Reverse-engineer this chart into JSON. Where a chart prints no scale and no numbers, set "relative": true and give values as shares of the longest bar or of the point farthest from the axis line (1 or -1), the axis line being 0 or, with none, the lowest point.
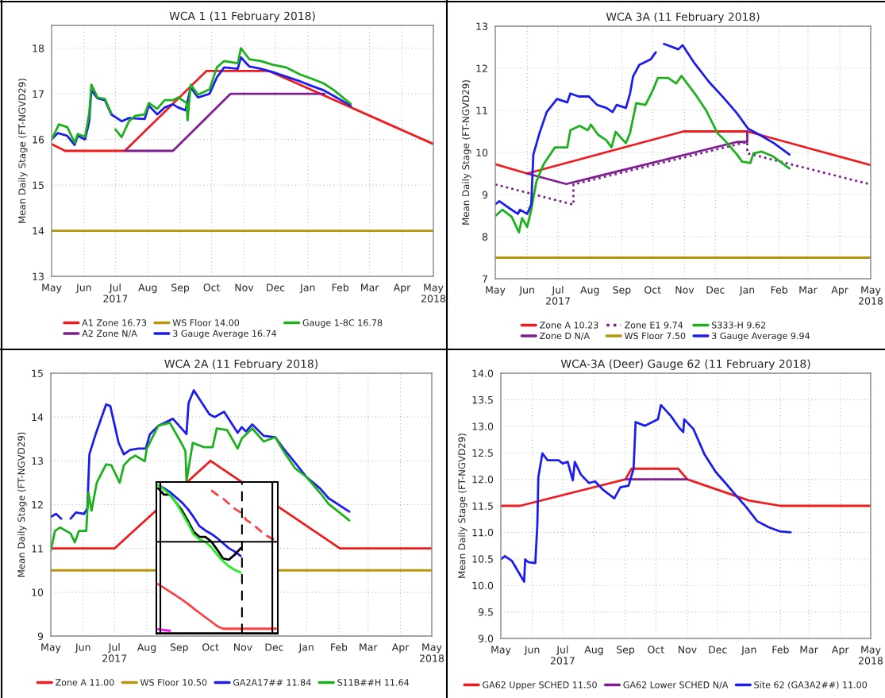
{
  "chart_data": [
    {
      "type": "line",
      "title": "WCA 1 (11 February 2018)",
      "ylabel": "Mean Daily Stage (FT-NGVD29)",
      "xlim": [
        "2017-05-01",
        "2018-05-01"
      ],
      "xticks": [
        {
          "value": "2017-05-01",
          "label": "May"
        },
        {
          "value": "2017-06-01",
          "label": "Jun"
        },
        {
          "value": "2017-07-01",
          "label": "Jul\n2017"
        },
        {
          "value": "2017-08-01",
          "label": "Aug"
        },
        {
          "value": "2017-09-01",
          "label": "Sep"
        },
        {
          "value": "2017-10-01",
          "label": "Oct"
        },
        {
          "value": "2017-11-01",
          "label": "Nov"
        },
        {
          "value": "2017-12-01",
          "label": "Dec"
        },
        {
          "value": "2018-01-01",
          "label": "Jan"
        },
        {
          "value": "2018-02-01",
          "label": "Feb"
        },
        {
          "value": "2018-03-01",
          "label": "Mar"
        },
        {
          "value": "2018-04-01",
          "label": "Apr"
        },
        {
          "value": "2018-05-01",
          "label": "May\n2018"
        }
      ],
      "ylim": [
        13,
        18.5
      ],
      "yticks": [
        13,
        14,
        15,
        16,
        17,
        18
      ],
      "grid": true,
      "legend": "bottom",
      "series": [
        {
          "name": "A1 Zone 16.73",
          "color": "#ee1c1c",
          "x": [
            "2017-05-01",
            "2017-05-14",
            "2017-07-10",
            "2017-09-26",
            "2017-11-25",
            "2018-05-01"
          ],
          "values": [
            15.9,
            15.75,
            15.75,
            17.5,
            17.5,
            15.9
          ]
        },
        {
          "name": "A2 Zone N/A",
          "color": "#7f1f8f",
          "x": [
            "2017-07-10",
            "2017-08-25",
            "2017-10-19",
            "2018-01-17"
          ],
          "values": [
            15.75,
            15.75,
            17.0,
            17.0
          ]
        },
        {
          "name": "WS Floor 14.00",
          "color": "#b8960c",
          "x": [
            "2017-05-01",
            "2018-05-01"
          ],
          "values": [
            14.0,
            14.0
          ]
        },
        {
          "name": "3 Gauge Average 16.74",
          "color": "#1c1cee",
          "x": [
            "2017-05-01",
            "2017-05-07",
            "2017-05-16",
            "2017-05-23",
            "2017-05-26",
            "2017-06-02",
            "2017-06-06",
            "2017-06-08",
            "2017-06-14",
            "2017-06-21",
            "2017-06-27",
            "2017-07-07",
            "2017-07-14",
            "2017-07-20",
            "2017-07-29",
            "2017-08-02",
            "2017-08-10",
            "2017-08-17",
            "2017-08-25",
            "2017-08-30",
            "2017-09-06",
            "2017-09-11",
            "2017-09-18",
            "2017-09-29",
            "2017-10-06",
            "2017-10-13",
            "2017-10-26",
            "2017-10-29",
            "2017-11-06",
            "2017-11-17",
            "2017-11-28",
            "2017-12-11",
            "2017-12-25",
            "2018-01-05",
            "2018-01-16",
            "2018-01-26",
            "2018-02-11"
          ],
          "values": [
            16.0,
            16.14,
            16.08,
            15.88,
            16.08,
            16.0,
            16.4,
            17.08,
            16.9,
            16.86,
            16.55,
            16.4,
            16.47,
            16.46,
            16.45,
            16.74,
            16.55,
            16.7,
            16.77,
            16.7,
            16.64,
            17.14,
            16.92,
            17.0,
            17.36,
            17.58,
            17.55,
            17.8,
            17.6,
            17.55,
            17.48,
            17.38,
            17.27,
            17.17,
            17.08,
            16.95,
            16.74
          ]
        },
        {
          "name": "Gauge 1-8C 16.78",
          "color": "#1cb01c",
          "x": [
            "2017-05-01",
            "2017-05-08",
            "2017-05-16",
            "2017-05-23",
            "2017-05-26",
            "2017-06-02",
            "2017-06-06",
            "2017-06-08",
            "2017-06-14",
            "2017-06-21",
            "2017-06-27",
            "2017-06-29",
            "2017-07-01",
            "2017-07-07",
            "2017-07-14",
            "2017-07-20",
            "2017-07-29",
            "2017-08-02",
            "2017-08-10",
            "2017-08-17",
            "2017-08-25",
            "2017-08-30",
            "2017-09-07",
            "2017-09-08",
            "2017-09-11",
            "2017-09-18",
            "2017-09-29",
            "2017-10-06",
            "2017-10-13",
            "2017-10-26",
            "2017-10-29",
            "2017-11-06",
            "2017-11-17",
            "2017-11-28",
            "2017-12-11",
            "2017-12-25",
            "2018-01-05",
            "2018-01-16",
            "2018-01-26",
            "2018-02-11"
          ],
          "values": [
            16.0,
            16.33,
            16.27,
            15.93,
            16.12,
            16.06,
            16.58,
            17.2,
            16.92,
            16.89,
            16.58,
            null,
            16.22,
            16.05,
            16.4,
            16.52,
            16.55,
            16.8,
            16.67,
            16.86,
            16.86,
            16.92,
            16.8,
            16.42,
            17.2,
            16.98,
            17.1,
            17.58,
            17.72,
            17.67,
            18.0,
            17.76,
            17.72,
            17.64,
            17.58,
            17.42,
            17.33,
            17.23,
            17.08,
            16.78
          ]
        }
      ]
    },
    {
      "type": "line",
      "title": "WCA 3A (11 February 2018)",
      "ylabel": "Mean Daily Stage (FT-NGVD29)",
      "xlim": [
        "2017-05-01",
        "2018-05-01"
      ],
      "xticks": [
        {
          "value": "2017-05-01",
          "label": "May"
        },
        {
          "value": "2017-06-01",
          "label": "Jun"
        },
        {
          "value": "2017-07-01",
          "label": "Jul\n2017"
        },
        {
          "value": "2017-08-01",
          "label": "Aug"
        },
        {
          "value": "2017-09-01",
          "label": "Sep"
        },
        {
          "value": "2017-10-01",
          "label": "Oct"
        },
        {
          "value": "2017-11-01",
          "label": "Nov"
        },
        {
          "value": "2017-12-01",
          "label": "Dec"
        },
        {
          "value": "2018-01-01",
          "label": "Jan"
        },
        {
          "value": "2018-02-01",
          "label": "Feb"
        },
        {
          "value": "2018-03-01",
          "label": "Mar"
        },
        {
          "value": "2018-04-01",
          "label": "Apr"
        },
        {
          "value": "2018-05-01",
          "label": "May\n2018"
        }
      ],
      "ylim": [
        7,
        13
      ],
      "yticks": [
        7,
        8,
        9,
        10,
        11,
        12,
        13
      ],
      "grid": true,
      "legend": "bottom",
      "series": [
        {
          "name": "Zone A 10.23",
          "color": "#ee1c1c",
          "x": [
            "2017-05-01",
            "2017-06-01",
            "2017-10-31",
            "2018-01-01",
            "2018-05-01"
          ],
          "values": [
            9.72,
            9.5,
            10.5,
            10.5,
            9.7
          ]
        },
        {
          "name": "Zone D N/A",
          "color": "#7f1f8f",
          "x": [
            "2017-06-01",
            "2017-07-09",
            "2017-12-22",
            "2018-01-01",
            "2018-01-01"
          ],
          "values": [
            9.5,
            9.25,
            10.25,
            10.25,
            10.5
          ]
        },
        {
          "name": "Zone E1 9.74",
          "color": "#7f1f8f",
          "line_style": "dotted",
          "x": [
            "2017-05-01",
            "2017-07-16",
            "2017-07-16",
            "2018-01-01",
            "2018-01-01",
            "2018-05-01"
          ],
          "values": [
            9.24,
            8.76,
            9.24,
            10.25,
            9.98,
            9.24
          ]
        },
        {
          "name": "WS Floor 7.50",
          "color": "#b8960c",
          "x": [
            "2017-05-01",
            "2018-05-01"
          ],
          "values": [
            7.5,
            7.5
          ]
        },
        {
          "name": "S333-H 9.62",
          "color": "#1cb01c",
          "x": [
            "2017-05-01",
            "2017-05-08",
            "2017-05-17",
            "2017-05-24",
            "2017-05-27",
            "2017-06-01",
            "2017-06-05",
            "2017-06-10",
            "2017-06-17",
            "2017-06-28",
            "2017-07-10",
            "2017-07-13",
            "2017-07-22",
            "2017-07-30",
            "2017-08-02",
            "2017-08-09",
            "2017-08-17",
            "2017-08-22",
            "2017-08-26",
            "2017-09-05",
            "2017-09-09",
            "2017-09-15",
            "2017-09-24",
            "2017-10-01",
            "2017-10-06",
            "2017-10-16",
            "2017-10-24",
            "2017-10-29",
            "2017-11-11",
            "2017-11-22",
            "2017-12-03",
            "2017-12-10",
            "2017-12-22",
            "2017-12-27",
            "2018-01-04",
            "2018-01-07",
            "2018-01-15",
            "2018-01-25",
            "2018-02-11"
          ],
          "values": [
            8.49,
            8.64,
            8.47,
            8.1,
            8.44,
            8.23,
            8.64,
            9.31,
            9.72,
            10.12,
            10.12,
            10.53,
            10.63,
            10.53,
            10.66,
            10.42,
            10.29,
            10.12,
            10.49,
            10.22,
            10.46,
            11.17,
            11.13,
            11.47,
            11.77,
            11.77,
            11.64,
            11.82,
            11.4,
            11.0,
            10.46,
            10.29,
            9.95,
            9.78,
            9.75,
            9.98,
            10.02,
            9.92,
            9.62
          ]
        },
        {
          "name": "3 Gauge Average 9.94",
          "color": "#1c1cee",
          "x": [
            "2017-05-01",
            "2017-05-05",
            "2017-05-15",
            "2017-05-23",
            "2017-05-25",
            "2017-06-01",
            "2017-06-05",
            "2017-06-07",
            "2017-06-13",
            "2017-06-20",
            "2017-06-30",
            "2017-07-10",
            "2017-07-13",
            "2017-07-21",
            "2017-07-31",
            "2017-08-08",
            "2017-08-17",
            "2017-08-23",
            "2017-08-27",
            "2017-09-05",
            "2017-09-09",
            "2017-09-12",
            "2017-09-18",
            "2017-09-29",
            "2017-10-04",
            "2017-10-08",
            "2017-10-12",
            "2017-10-26",
            "2017-10-30",
            "2017-11-11",
            "2017-11-25",
            "2017-12-09",
            "2017-12-22",
            "2018-01-02",
            "2018-01-13",
            "2018-01-27",
            "2018-02-11"
          ],
          "values": [
            8.77,
            8.84,
            8.67,
            8.54,
            8.64,
            8.54,
            8.77,
            9.95,
            10.46,
            10.96,
            11.27,
            11.19,
            11.4,
            11.33,
            11.33,
            11.13,
            11.06,
            10.96,
            11.13,
            11.06,
            11.4,
            11.81,
            12.08,
            12.21,
            12.38,
            null,
            12.58,
            12.45,
            12.55,
            12.11,
            11.67,
            11.3,
            10.93,
            10.56,
            10.42,
            10.22,
            9.95
          ]
        }
      ]
    },
    {
      "type": "line",
      "title": "WCA 2A (11 February 2018)",
      "ylabel": "Mean Daily Stage (FT-NGVD29)",
      "xlim": [
        "2017-05-01",
        "2018-05-01"
      ],
      "xticks": [
        {
          "value": "2017-05-01",
          "label": "May"
        },
        {
          "value": "2017-06-01",
          "label": "Jun"
        },
        {
          "value": "2017-07-01",
          "label": "Jul\n2017"
        },
        {
          "value": "2017-08-01",
          "label": "Aug"
        },
        {
          "value": "2017-09-01",
          "label": "Sep"
        },
        {
          "value": "2017-10-01",
          "label": "Oct"
        },
        {
          "value": "2017-11-01",
          "label": "Nov"
        },
        {
          "value": "2017-12-01",
          "label": "Dec"
        },
        {
          "value": "2018-01-01",
          "label": "Jan"
        },
        {
          "value": "2018-02-01",
          "label": "Feb"
        },
        {
          "value": "2018-03-01",
          "label": "Mar"
        },
        {
          "value": "2018-04-01",
          "label": "Apr"
        },
        {
          "value": "2018-05-01",
          "label": "May\n2018"
        }
      ],
      "ylim": [
        9,
        15
      ],
      "yticks": [
        9,
        10,
        11,
        12,
        13,
        14,
        15
      ],
      "grid": true,
      "legend": "bottom",
      "series": [
        {
          "name": "Zone A 11.00",
          "color": "#ee1c1c",
          "x": [
            "2017-05-01",
            "2017-07-01",
            "2017-10-01",
            "2018-02-02",
            "2018-05-01"
          ],
          "values": [
            11.0,
            11.0,
            13.0,
            11.0,
            11.0
          ]
        },
        {
          "name": "WS Floor 10.50",
          "color": "#b8960c",
          "x": [
            "2017-05-01",
            "2018-05-01"
          ],
          "values": [
            10.5,
            10.5
          ]
        },
        {
          "name": "GA2A17## 11.84",
          "color": "#1c1cee",
          "x": [
            "2017-05-01",
            "2017-05-06",
            "2017-05-11",
            "2017-05-15",
            "2017-05-20",
            "2017-05-25",
            "2017-06-02",
            "2017-06-05",
            "2017-06-07",
            "2017-06-13",
            "2017-06-23",
            "2017-06-27",
            "2017-07-05",
            "2017-07-10",
            "2017-07-16",
            "2017-07-24",
            "2017-07-31",
            "2017-08-04",
            "2017-08-12",
            "2017-08-26",
            "2017-09-08",
            "2017-09-10",
            "2017-09-15",
            "2017-09-30",
            "2017-10-05",
            "2017-10-14",
            "2017-10-27",
            "2017-10-31",
            "2017-11-04",
            "2017-11-10",
            "2017-11-21",
            "2017-12-02",
            "2017-12-10",
            "2017-12-21",
            "2018-01-01",
            "2018-01-14",
            "2018-01-22",
            "2018-02-11"
          ],
          "values": [
            11.72,
            11.79,
            11.68,
            null,
            11.68,
            11.82,
            11.79,
            11.92,
            13.15,
            13.61,
            14.29,
            14.25,
            13.41,
            13.15,
            13.25,
            13.28,
            13.28,
            13.61,
            13.8,
            13.96,
            13.61,
            14.32,
            14.61,
            14.06,
            14.0,
            14.12,
            13.64,
            13.77,
            13.67,
            13.83,
            13.57,
            13.54,
            13.28,
            12.96,
            12.63,
            12.37,
            12.15,
            11.84
          ]
        },
        {
          "name": "S11B##H 11.64",
          "color": "#1cb01c",
          "x": [
            "2017-05-01",
            "2017-05-05",
            "2017-05-10",
            "2017-05-20",
            "2017-05-24",
            "2017-05-28",
            "2017-06-04",
            "2017-06-06",
            "2017-06-09",
            "2017-06-14",
            "2017-06-23",
            "2017-06-28",
            "2017-07-06",
            "2017-07-10",
            "2017-07-16",
            "2017-07-21",
            "2017-07-30",
            "2017-08-01",
            "2017-08-12",
            "2017-08-23",
            "2017-09-03",
            "2017-09-07",
            "2017-09-08",
            "2017-09-14",
            "2017-09-25",
            "2017-10-03",
            "2017-10-07",
            "2017-10-17",
            "2017-10-27",
            "2017-10-31",
            "2017-11-10",
            "2017-11-21",
            "2017-12-02",
            "2017-12-10",
            "2017-12-21",
            "2018-01-01",
            "2018-01-15",
            "2018-01-22",
            "2018-02-11"
          ],
          "values": [
            10.95,
            11.4,
            11.48,
            11.34,
            11.14,
            11.4,
            11.4,
            12.28,
            11.86,
            12.5,
            12.92,
            12.9,
            12.5,
            12.9,
            13.05,
            13.12,
            12.99,
            13.28,
            13.8,
            13.87,
            13.41,
            13.22,
            12.54,
            13.41,
            13.31,
            13.31,
            13.74,
            13.7,
            13.28,
            13.51,
            13.74,
            13.44,
            13.54,
            13.22,
            12.83,
            12.63,
            12.24,
            12.02,
            11.64
          ]
        }
      ]
    },
    {
      "type": "line",
      "title": "WCA-3A (Deer) Gauge 62 (11 February 2018)",
      "ylabel": "Mean Daily Stage (FT-NGVD29)",
      "xlim": [
        "2017-05-01",
        "2018-05-01"
      ],
      "xticks": [
        {
          "value": "2017-05-01",
          "label": "May"
        },
        {
          "value": "2017-06-01",
          "label": "Jun"
        },
        {
          "value": "2017-07-01",
          "label": "Jul\n2017"
        },
        {
          "value": "2017-08-01",
          "label": "Aug"
        },
        {
          "value": "2017-09-01",
          "label": "Sep"
        },
        {
          "value": "2017-10-01",
          "label": "Oct"
        },
        {
          "value": "2017-11-01",
          "label": "Nov"
        },
        {
          "value": "2017-12-01",
          "label": "Dec"
        },
        {
          "value": "2018-01-01",
          "label": "Jan"
        },
        {
          "value": "2018-02-01",
          "label": "Feb"
        },
        {
          "value": "2018-03-01",
          "label": "Mar"
        },
        {
          "value": "2018-04-01",
          "label": "Apr"
        },
        {
          "value": "2018-05-01",
          "label": "May\n2018"
        }
      ],
      "ylim": [
        9,
        14
      ],
      "yticks": [
        {
          "value": 9,
          "label": "9.0"
        },
        9.5,
        {
          "value": 10,
          "label": "10.0"
        },
        10.5,
        {
          "value": 11,
          "label": "11.0"
        },
        11.5,
        {
          "value": 12,
          "label": "12.0"
        },
        12.5,
        {
          "value": 13,
          "label": "13.0"
        },
        13.5,
        {
          "value": 14,
          "label": "14.0"
        }
      ],
      "grid": true,
      "legend": "bottom",
      "series": [
        {
          "name": "GA62 Upper SCHED 11.50",
          "color": "#ee1c1c",
          "x": [
            "2017-05-01",
            "2017-05-20",
            "2017-09-01",
            "2017-09-07",
            "2017-10-23",
            "2017-11-01",
            "2018-01-01",
            "2018-02-01",
            "2018-05-01"
          ],
          "values": [
            11.5,
            11.5,
            12.0,
            12.2,
            12.2,
            12.0,
            11.6,
            11.5,
            11.5
          ]
        },
        {
          "name": "GA62 Lower SCHED N/A",
          "color": "#7f1f8f",
          "x": [
            "2017-09-01",
            "2017-11-01"
          ],
          "values": [
            12.0,
            12.0
          ]
        },
        {
          "name": "Site 62 (GA3A2##) 11.00",
          "color": "#1c1cee",
          "x": [
            "2017-05-01",
            "2017-05-05",
            "2017-05-12",
            "2017-05-24",
            "2017-05-25",
            "2017-05-28",
            "2017-06-04",
            "2017-06-06",
            "2017-06-07",
            "2017-06-11",
            "2017-06-16",
            "2017-06-27",
            "2017-07-01",
            "2017-07-06",
            "2017-07-11",
            "2017-07-13",
            "2017-07-19",
            "2017-07-27",
            "2017-08-02",
            "2017-08-10",
            "2017-08-21",
            "2017-08-27",
            "2017-09-04",
            "2017-09-09",
            "2017-09-11",
            "2017-09-20",
            "2017-10-03",
            "2017-10-06",
            "2017-10-16",
            "2017-10-24",
            "2017-10-28",
            "2017-10-29",
            "2017-11-07",
            "2017-11-18",
            "2017-11-29",
            "2017-12-10",
            "2017-12-18",
            "2017-12-29",
            "2018-01-09",
            "2018-01-20",
            "2018-01-31",
            "2018-02-11"
          ],
          "values": [
            10.49,
            10.55,
            10.46,
            10.07,
            10.49,
            10.44,
            10.42,
            11.13,
            12.04,
            12.49,
            12.36,
            12.36,
            12.3,
            12.33,
            11.98,
            12.33,
            12.09,
            11.93,
            11.96,
            11.8,
            11.64,
            11.85,
            11.88,
            12.2,
            13.08,
            13.01,
            13.13,
            13.4,
            13.19,
            12.97,
            12.89,
            13.13,
            12.95,
            12.47,
            12.14,
            11.9,
            11.72,
            11.48,
            11.21,
            11.1,
            11.02,
            11.0
          ]
        }
      ]
    },
    {
      "type": "line",
      "relative": true,
      "categories": [
        null,
        null,
        null,
        null,
        null,
        null,
        null,
        null,
        null,
        null,
        null,
        null,
        null,
        null,
        null,
        null,
        null,
        null,
        null,
        null,
        null
      ],
      "series": [
        {
          "color": "#ff4040",
          "line_style": "dashed",
          "values": [
            null,
            null,
            null,
            null,
            null,
            null,
            null,
            null,
            null,
            0.963,
            0.933,
            0.907,
            0.872,
            0.837,
            0.811,
            0.758,
            0.732,
            0.697,
            0.662,
            0.639,
            0.618
          ]
        },
        {
          "color": "#ff4040",
          "values": [
            0.32,
            0.294,
            0.268,
            0.242,
            0.215,
            0.186,
            0.154,
            0.123,
            0.093,
            0.063,
            0.032,
            0.014,
            0.014,
            0.014,
            0.014,
            0.014,
            0.014,
            0.014,
            0.014,
            0.014,
            0.014
          ]
        },
        {
          "color": "#ff00ff",
          "values": [
            0.011,
            0.005,
            0.0,
            null,
            null,
            null,
            null,
            null,
            null,
            null,
            null,
            null,
            null,
            null,
            null,
            null,
            null,
            null,
            null,
            null,
            null
          ]
        },
        {
          "color": "#1c1cee",
          "values": [
            1.0,
            0.977,
            0.951,
            0.916,
            0.881,
            0.837,
            0.781,
            0.718,
            0.688,
            0.665,
            0.636,
            0.601,
            0.566,
            0.543,
            0.513,
            null,
            null,
            null,
            null,
            null,
            null
          ]
        },
        {
          "color": "#000000",
          "values": [
            0.977,
            0.933,
            0.933,
            0.881,
            0.828,
            0.758,
            0.68,
            0.644,
            0.644,
            0.613,
            0.557,
            0.496,
            0.487,
            0.522,
            0.566,
            null,
            null,
            null,
            null,
            null,
            null
          ]
        },
        {
          "color": "#22ee22",
          "values": [
            1.0,
            0.968,
            0.933,
            0.881,
            0.811,
            0.741,
            0.662,
            0.627,
            0.609,
            0.574,
            0.522,
            0.478,
            0.443,
            0.417,
            0.399,
            null,
            null,
            null,
            null,
            null,
            null
          ]
        }
      ]
    }
  ]
}
